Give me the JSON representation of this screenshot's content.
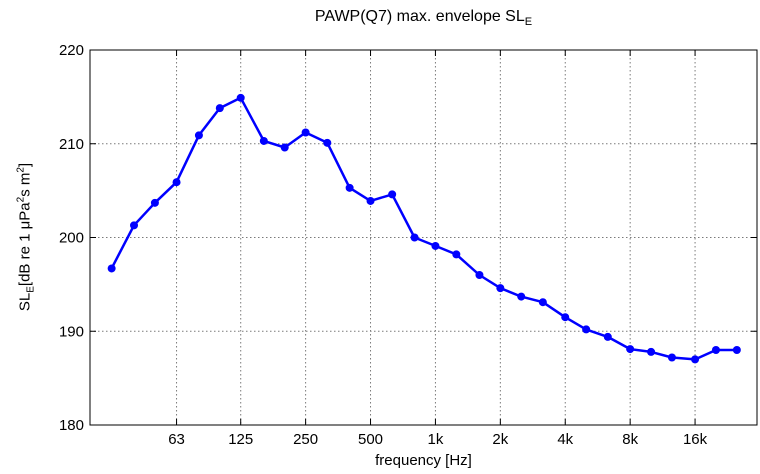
{
  "chart_data": {
    "type": "line",
    "title_main": "PAWP(Q7) max. envelope SL",
    "title_sub": "E",
    "xlabel": "frequency [Hz]",
    "ylabel": {
      "p1": "SL",
      "p1_sub": "E",
      "p2": "[dB re 1 ",
      "mu": "μ",
      "p3": "Pa",
      "sup1": "2",
      "p4": "s m",
      "sup2": "2",
      "p5": "]"
    },
    "x_scale": "log",
    "xlim": [
      25,
      31000
    ],
    "ylim": [
      180,
      220
    ],
    "grid": true,
    "line_color": "#0000ff",
    "x_ticks": [
      {
        "value": 63,
        "label": "63"
      },
      {
        "value": 125,
        "label": "125"
      },
      {
        "value": 250,
        "label": "250"
      },
      {
        "value": 500,
        "label": "500"
      },
      {
        "value": 1000,
        "label": "1k"
      },
      {
        "value": 2000,
        "label": "2k"
      },
      {
        "value": 4000,
        "label": "4k"
      },
      {
        "value": 8000,
        "label": "8k"
      },
      {
        "value": 16000,
        "label": "16k"
      }
    ],
    "y_ticks": [
      {
        "value": 180,
        "label": "180"
      },
      {
        "value": 190,
        "label": "190"
      },
      {
        "value": 200,
        "label": "200"
      },
      {
        "value": 210,
        "label": "210"
      },
      {
        "value": 220,
        "label": "220"
      }
    ],
    "series": [
      {
        "x": [
          31.5,
          40,
          50,
          63,
          80,
          100,
          125,
          160,
          200,
          250,
          315,
          400,
          500,
          630,
          800,
          1000,
          1250,
          1600,
          2000,
          2500,
          3150,
          4000,
          5000,
          6300,
          8000,
          10000,
          12500,
          16000,
          20000,
          25000
        ],
        "y": [
          196.7,
          201.3,
          203.7,
          205.9,
          210.9,
          213.8,
          214.9,
          210.3,
          209.6,
          211.2,
          210.1,
          205.3,
          203.9,
          204.6,
          200.0,
          199.1,
          198.2,
          196.0,
          194.6,
          193.7,
          193.1,
          191.5,
          190.2,
          189.4,
          188.1,
          187.8,
          187.2,
          187.0,
          188.0,
          188.0
        ]
      }
    ]
  }
}
